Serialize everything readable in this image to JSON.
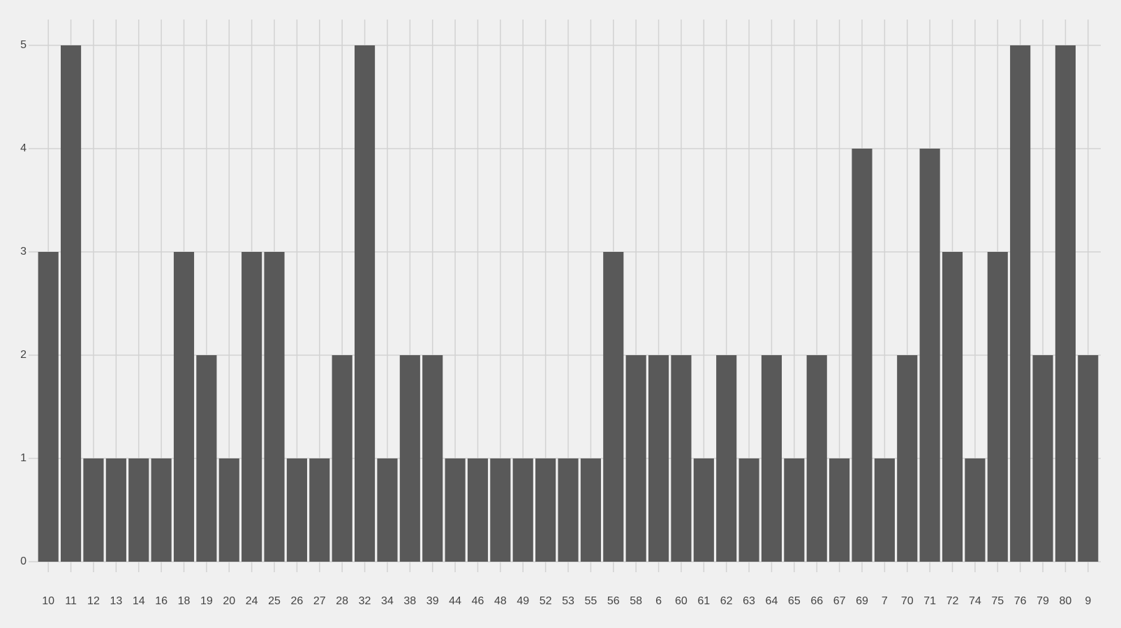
{
  "chart_data": {
    "type": "bar",
    "categories": [
      "10",
      "11",
      "12",
      "13",
      "14",
      "16",
      "18",
      "19",
      "20",
      "24",
      "25",
      "26",
      "27",
      "28",
      "32",
      "34",
      "38",
      "39",
      "44",
      "46",
      "48",
      "49",
      "52",
      "53",
      "55",
      "56",
      "58",
      "6",
      "60",
      "61",
      "62",
      "63",
      "64",
      "65",
      "66",
      "67",
      "69",
      "7",
      "70",
      "71",
      "72",
      "74",
      "75",
      "76",
      "79",
      "80",
      "9"
    ],
    "values": [
      3,
      5,
      1,
      1,
      1,
      1,
      3,
      2,
      1,
      3,
      3,
      1,
      1,
      2,
      5,
      1,
      2,
      2,
      1,
      1,
      1,
      1,
      1,
      1,
      1,
      3,
      2,
      2,
      2,
      1,
      2,
      1,
      2,
      1,
      2,
      1,
      4,
      1,
      2,
      4,
      3,
      1,
      3,
      5,
      2,
      5,
      2
    ],
    "color": "#595959",
    "ylim": [
      0,
      5
    ],
    "yticks": [
      0,
      1,
      2,
      3,
      4,
      5
    ],
    "grid": true
  }
}
